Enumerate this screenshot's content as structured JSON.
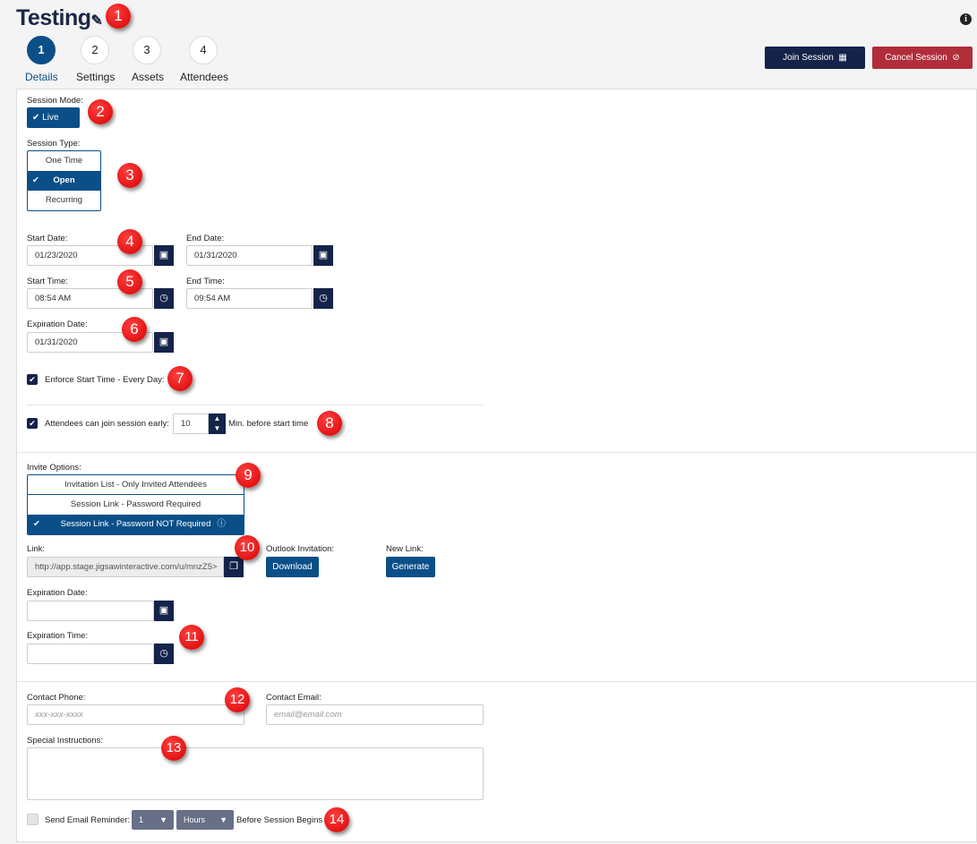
{
  "header": {
    "title": "Testing",
    "edit_icon": "pencil-icon",
    "info_icon": "info-circle-icon",
    "steps": [
      {
        "num": "1",
        "label": "Details",
        "active": true
      },
      {
        "num": "2",
        "label": "Settings"
      },
      {
        "num": "3",
        "label": "Assets"
      },
      {
        "num": "4",
        "label": "Attendees"
      }
    ],
    "join_label": "Join Session",
    "cancel_label": "Cancel Session"
  },
  "colors": {
    "primary": "#0b4f88",
    "navy": "#14234a",
    "danger": "#b22d3a",
    "badge": "#e00000"
  },
  "form": {
    "session_mode_label": "Session Mode:",
    "session_mode_value": "Live",
    "session_type_label": "Session Type:",
    "session_types": [
      "One Time",
      "Open",
      "Recurring"
    ],
    "session_type_selected": "Open",
    "start_date_label": "Start Date:",
    "start_date": "01/23/2020",
    "end_date_label": "End Date:",
    "end_date": "01/31/2020",
    "start_time_label": "Start Time:",
    "start_time": "08:54 AM",
    "end_time_label": "End Time:",
    "end_time": "09:54 AM",
    "expiration_date_label": "Expiration Date:",
    "expiration_date": "01/31/2020",
    "enforce_label": "Enforce Start Time - Every Day:",
    "enforce_checked": true,
    "early_label": "Attendees can join session early:",
    "early_checked": true,
    "early_minutes": "10",
    "early_suffix": "Min. before start time",
    "invite_label": "Invite Options:",
    "invite_options": [
      "Invitation List - Only Invited Attendees",
      "Session Link - Password Required",
      "Session Link - Password NOT Required"
    ],
    "invite_selected": "Session Link - Password NOT Required",
    "link_label": "Link:",
    "link_value": "http://app.stage.jigsawinteractive.com/u/mnzZ5>",
    "outlook_label": "Outlook Invitation:",
    "download_label": "Download",
    "new_link_label": "New Link:",
    "generate_label": "Generate",
    "link_exp_date_label": "Expiration Date:",
    "link_exp_time_label": "Expiration Time:",
    "phone_label": "Contact Phone:",
    "phone_placeholder": "xxx-xxx-xxxx",
    "email_label": "Contact Email:",
    "email_placeholder": "email@email.com",
    "instructions_label": "Special Instructions:",
    "reminder_label": "Send Email Reminder:",
    "reminder_checked": false,
    "reminder_amount": "1",
    "reminder_unit": "Hours",
    "reminder_suffix": "Before Session Begins"
  },
  "callouts": [
    "1",
    "2",
    "3",
    "4",
    "5",
    "6",
    "7",
    "8",
    "9",
    "10",
    "11",
    "12",
    "13",
    "14"
  ]
}
